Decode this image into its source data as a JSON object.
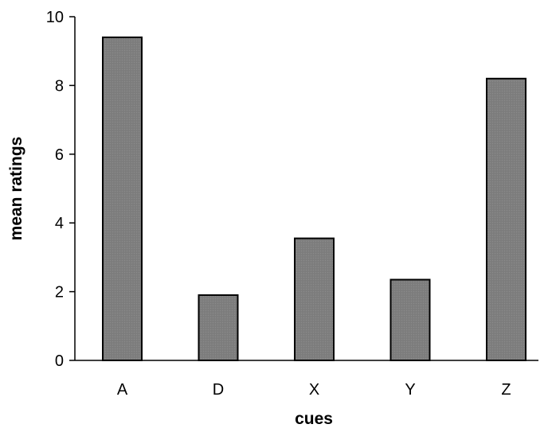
{
  "chart_data": {
    "type": "bar",
    "title": "",
    "xlabel": "cues",
    "ylabel": "mean ratings",
    "categories": [
      "A",
      "D",
      "X",
      "Y",
      "Z"
    ],
    "values": [
      9.4,
      1.9,
      3.55,
      2.35,
      8.2
    ],
    "ylim": [
      0,
      10
    ],
    "yticks": [
      0,
      2,
      4,
      6,
      8,
      10
    ],
    "ytick_labels": [
      "0",
      "2",
      "4",
      "6",
      "8",
      "10"
    ],
    "grid": false,
    "legend": "none",
    "colors": {
      "bar_fill": "#7f7f7f",
      "bar_stroke": "#000000",
      "axis": "#000000"
    }
  }
}
